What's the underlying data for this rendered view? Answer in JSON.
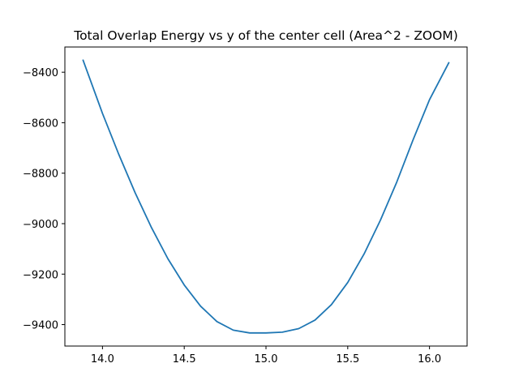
{
  "chart_data": {
    "type": "line",
    "title": "Total Overlap Energy vs y of the center cell (Area^2 - ZOOM)",
    "xlabel": "",
    "ylabel": "",
    "xlim": [
      13.77,
      16.23
    ],
    "ylim": [
      -9485,
      -8300
    ],
    "grid": false,
    "x_ticks": [
      14.0,
      14.5,
      15.0,
      15.5,
      16.0
    ],
    "x_tick_labels": [
      "14.0",
      "14.5",
      "15.0",
      "15.5",
      "16.0"
    ],
    "y_ticks": [
      -8400,
      -8600,
      -8800,
      -9000,
      -9200,
      -9400
    ],
    "y_tick_labels": [
      "−8400",
      "−8600",
      "−8800",
      "−9000",
      "−9200",
      "−9400"
    ],
    "series": [
      {
        "color": "#1f77b4",
        "x": [
          13.88,
          14.0,
          14.1,
          14.2,
          14.3,
          14.4,
          14.5,
          14.6,
          14.7,
          14.8,
          14.9,
          15.0,
          15.1,
          15.2,
          15.3,
          15.4,
          15.5,
          15.6,
          15.7,
          15.8,
          15.9,
          16.0,
          16.12
        ],
        "y": [
          -8350,
          -8563,
          -8726,
          -8878,
          -9016,
          -9139,
          -9243,
          -9327,
          -9388,
          -9422,
          -9433,
          -9433,
          -9430,
          -9416,
          -9382,
          -9321,
          -9233,
          -9120,
          -8986,
          -8835,
          -8667,
          -8509,
          -8360
        ]
      }
    ]
  }
}
